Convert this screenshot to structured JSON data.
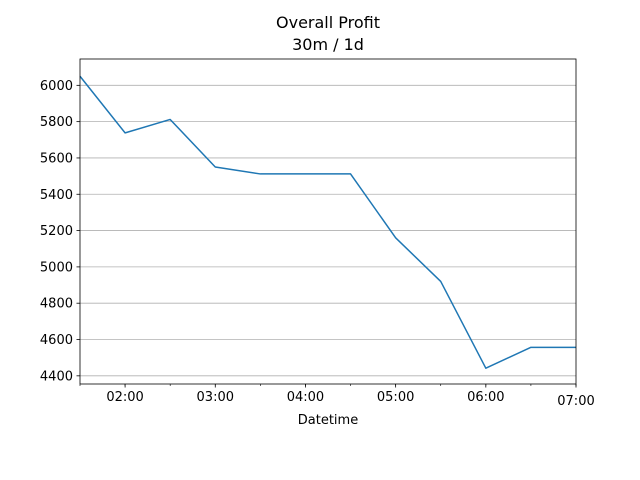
{
  "chart_data": {
    "type": "line",
    "title": "Overall Profit",
    "subtitle": "30m / 1d",
    "xlabel": "Datetime",
    "ylabel": "",
    "x": [
      "01:30",
      "02:00",
      "02:30",
      "03:00",
      "03:30",
      "04:00",
      "04:30",
      "05:00",
      "05:30",
      "06:00",
      "06:30",
      "07:00"
    ],
    "series": [
      {
        "values": [
          6050,
          5738,
          5812,
          5550,
          5512,
          5512,
          5512,
          5160,
          4920,
          4442,
          4557,
          4557
        ]
      }
    ],
    "xlim": [
      "01:30",
      "07:00"
    ],
    "ylim": [
      4355,
      6145
    ],
    "x_ticks": [
      "02:00",
      "03:00",
      "04:00",
      "05:00",
      "06:00",
      "07:00"
    ],
    "y_ticks": [
      4400,
      4600,
      4800,
      5000,
      5200,
      5400,
      5600,
      5800,
      6000
    ],
    "grid": "horizontal",
    "line_color": "#1f77b4"
  }
}
